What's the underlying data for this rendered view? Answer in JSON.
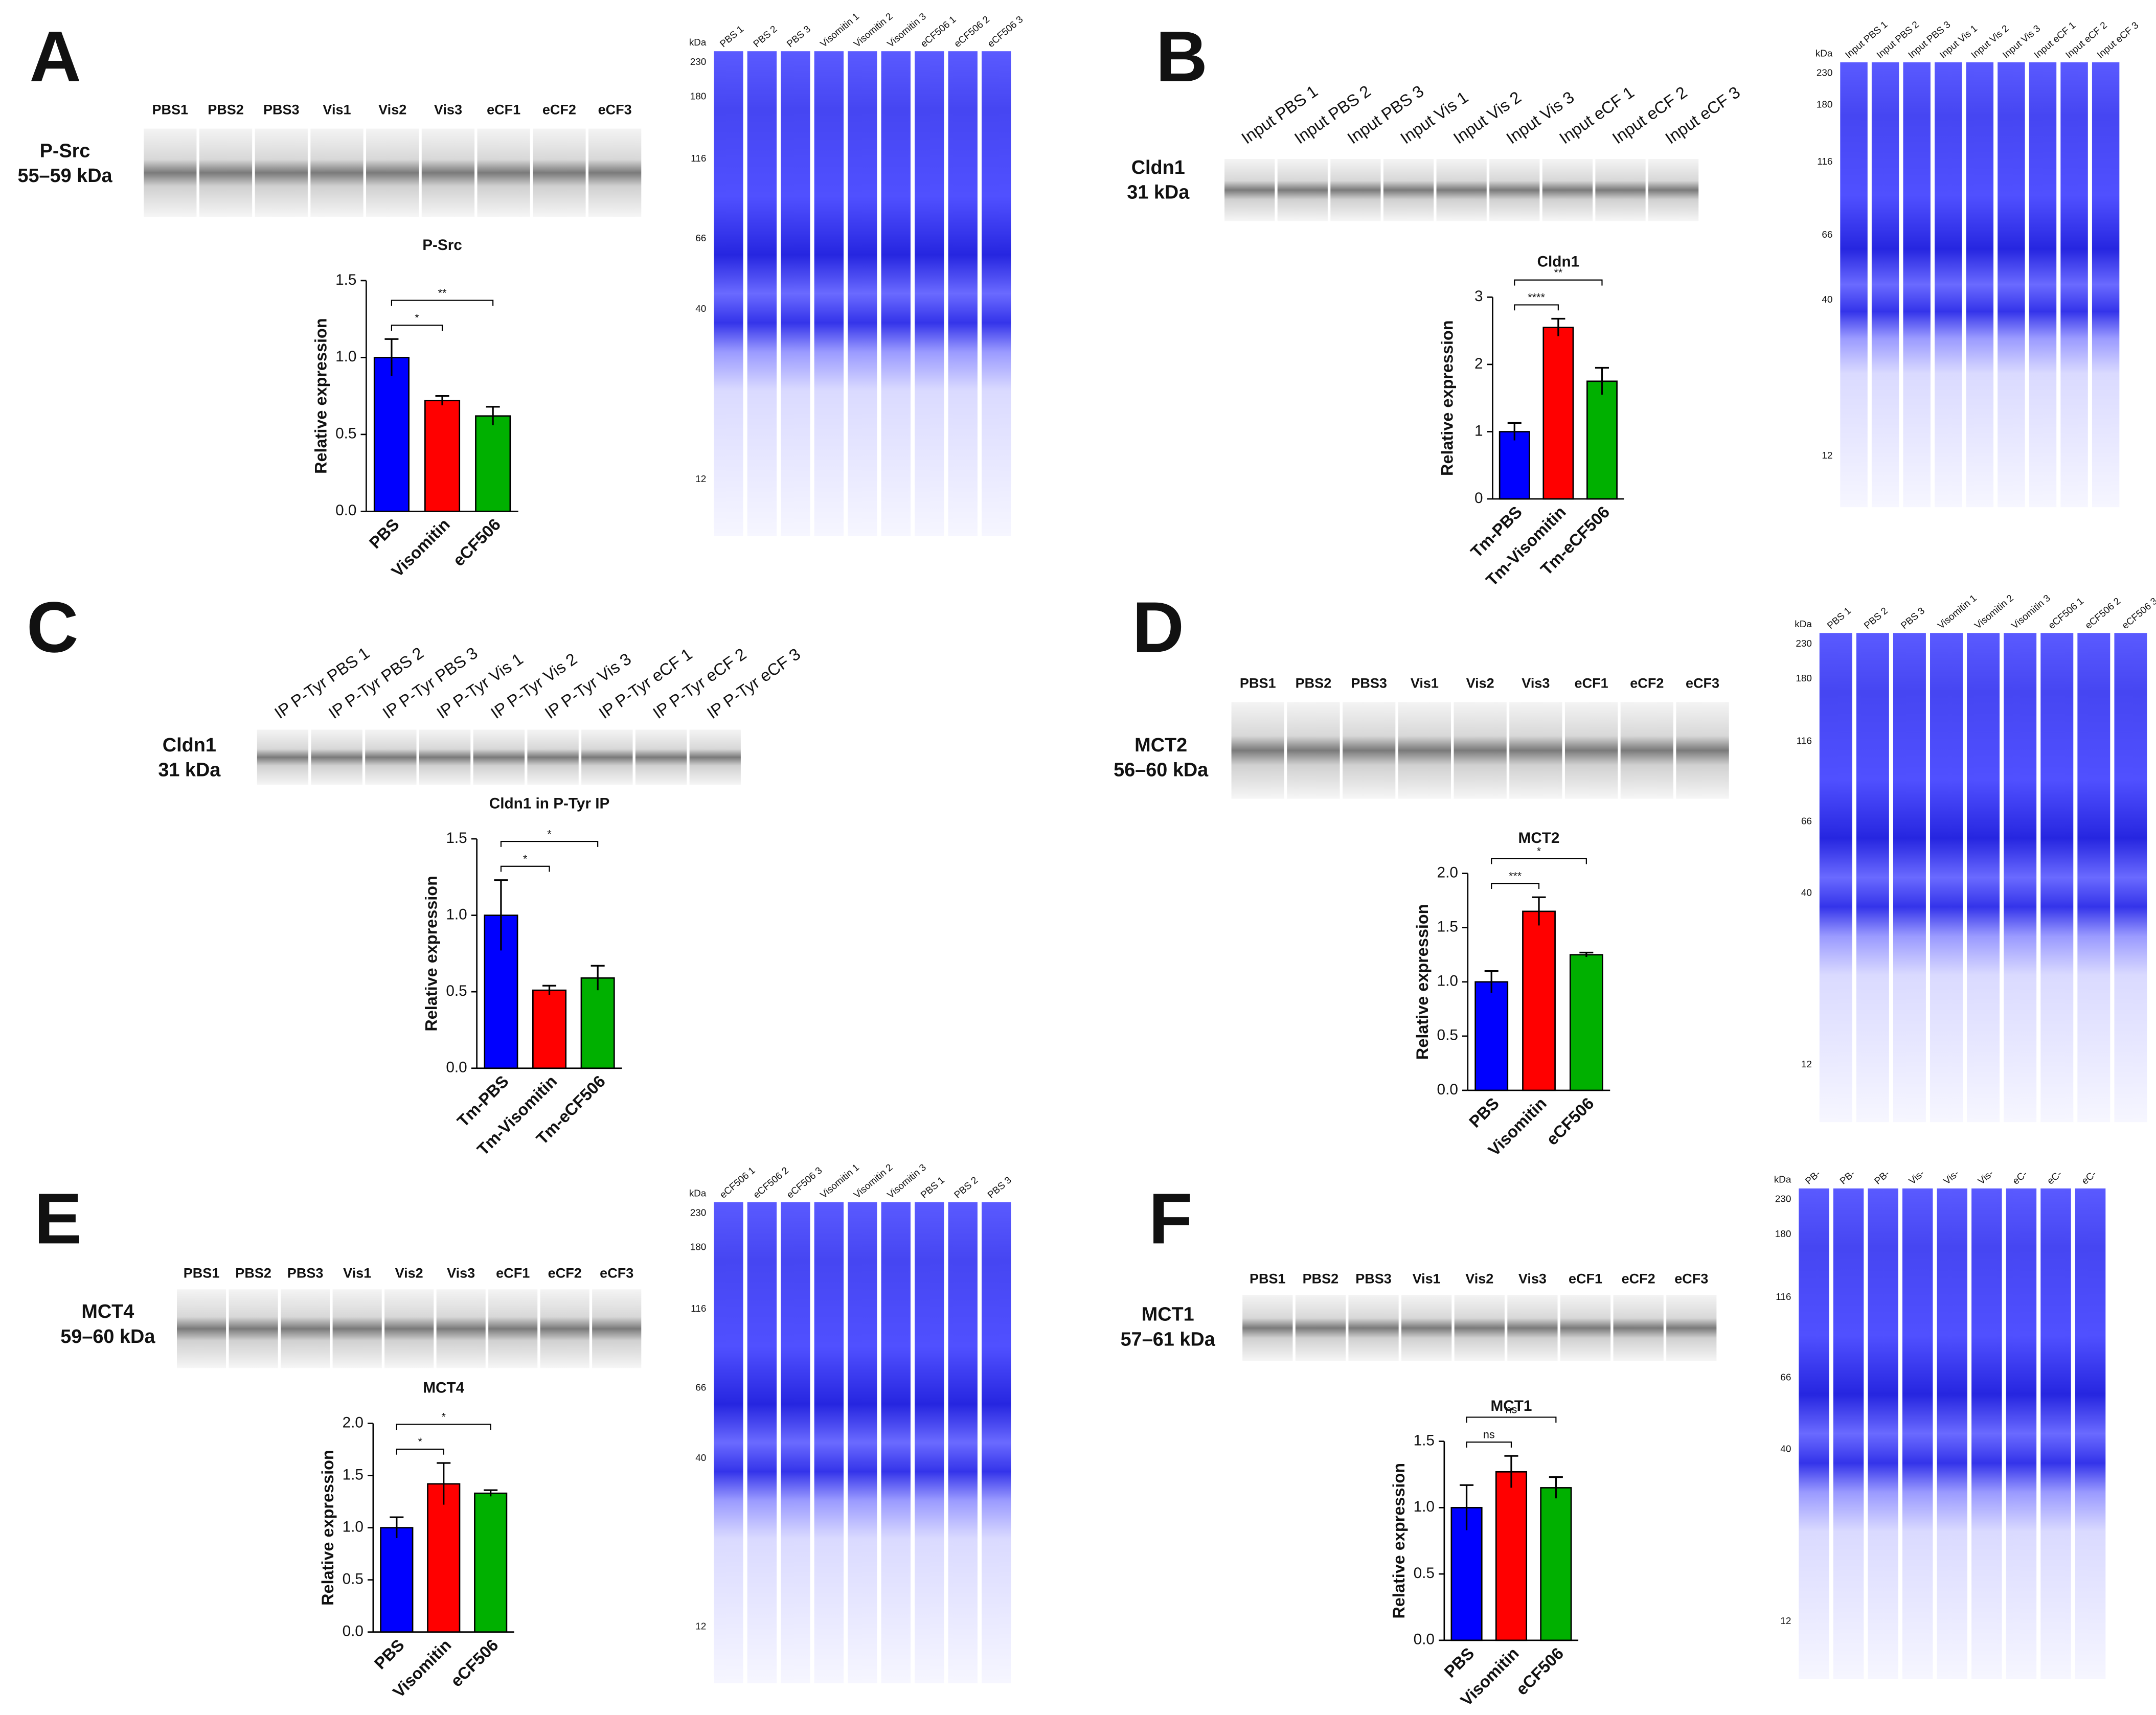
{
  "chart_data": [
    {
      "type": "bar",
      "title": "P-Src",
      "y_label": "Relative expression",
      "categories": [
        "PBS",
        "Visomitin",
        "eCF506"
      ],
      "values": [
        1.0,
        0.72,
        0.62
      ],
      "errors": [
        0.12,
        0.03,
        0.06
      ],
      "colors": [
        "#0000ff",
        "#ff0000",
        "#00b000"
      ],
      "ylim": [
        0,
        1.5
      ],
      "yticks": [
        {
          "value": 0,
          "label": "0.0"
        },
        {
          "value": 0.5,
          "label": "0.5"
        },
        {
          "value": 1,
          "label": "1.0"
        },
        {
          "value": 1.5,
          "label": "1.5"
        }
      ],
      "significance": [
        "*",
        "**"
      ]
    },
    {
      "type": "bar",
      "title": "Cldn1",
      "y_label": "Relative expression",
      "categories": [
        "Tm-PBS",
        "Tm-Visomitin",
        "Tm-eCF506"
      ],
      "values": [
        1.0,
        2.55,
        1.75
      ],
      "errors": [
        0.13,
        0.13,
        0.2
      ],
      "colors": [
        "#0000ff",
        "#ff0000",
        "#00b000"
      ],
      "ylim": [
        0,
        3
      ],
      "yticks": [
        0,
        1,
        2,
        3
      ],
      "significance": [
        "****",
        "**"
      ]
    },
    {
      "type": "bar",
      "title": "Cldn1 in P-Tyr IP",
      "y_label": "Relative expression",
      "categories": [
        "Tm-PBS",
        "Tm-Visomitin",
        "Tm-eCF506"
      ],
      "values": [
        1.0,
        0.51,
        0.59
      ],
      "errors": [
        0.23,
        0.03,
        0.08
      ],
      "colors": [
        "#0000ff",
        "#ff0000",
        "#00b000"
      ],
      "ylim": [
        0,
        1.5
      ],
      "yticks": [
        {
          "value": 0,
          "label": "0.0"
        },
        {
          "value": 0.5,
          "label": "0.5"
        },
        {
          "value": 1,
          "label": "1.0"
        },
        {
          "value": 1.5,
          "label": "1.5"
        }
      ],
      "significance": [
        "*",
        "*"
      ]
    },
    {
      "type": "bar",
      "title": "MCT2",
      "y_label": "Relative expression",
      "categories": [
        "PBS",
        "Visomitin",
        "eCF506"
      ],
      "values": [
        1.0,
        1.65,
        1.25
      ],
      "errors": [
        0.1,
        0.13,
        0.02
      ],
      "colors": [
        "#0000ff",
        "#ff0000",
        "#00b000"
      ],
      "ylim": [
        0,
        2
      ],
      "yticks": [
        {
          "value": 0,
          "label": "0.0"
        },
        {
          "value": 0.5,
          "label": "0.5"
        },
        {
          "value": 1,
          "label": "1.0"
        },
        {
          "value": 1.5,
          "label": "1.5"
        },
        {
          "value": 2,
          "label": "2.0"
        }
      ],
      "significance": [
        "***",
        "*"
      ]
    },
    {
      "type": "bar",
      "title": "MCT4",
      "y_label": "Relative expression",
      "categories": [
        "PBS",
        "Visomitin",
        "eCF506"
      ],
      "values": [
        1.0,
        1.42,
        1.33
      ],
      "errors": [
        0.1,
        0.2,
        0.03
      ],
      "colors": [
        "#0000ff",
        "#ff0000",
        "#00b000"
      ],
      "ylim": [
        0,
        2
      ],
      "yticks": [
        {
          "value": 0,
          "label": "0.0"
        },
        {
          "value": 0.5,
          "label": "0.5"
        },
        {
          "value": 1,
          "label": "1.0"
        },
        {
          "value": 1.5,
          "label": "1.5"
        },
        {
          "value": 2,
          "label": "2.0"
        }
      ],
      "significance": [
        "*",
        "*"
      ]
    },
    {
      "type": "bar",
      "title": "MCT1",
      "y_label": "Relative expression",
      "categories": [
        "PBS",
        "Visomitin",
        "eCF506"
      ],
      "values": [
        1.0,
        1.27,
        1.15
      ],
      "errors": [
        0.17,
        0.12,
        0.08
      ],
      "colors": [
        "#0000ff",
        "#ff0000",
        "#00b000"
      ],
      "ylim": [
        0,
        1.5
      ],
      "yticks": [
        {
          "value": 0,
          "label": "0.0"
        },
        {
          "value": 0.5,
          "label": "0.5"
        },
        {
          "value": 1,
          "label": "1.0"
        },
        {
          "value": 1.5,
          "label": "1.5"
        }
      ],
      "significance": [
        "ns",
        "ns"
      ]
    }
  ],
  "panels": [
    {
      "letter": "A",
      "protein": "P-Src",
      "size": "55–59 kDa",
      "blot_lanes": [
        "PBS1",
        "PBS2",
        "PBS3",
        "Vis1",
        "Vis2",
        "Vis3",
        "eCF1",
        "eCF2",
        "eCF3"
      ],
      "gel_unit": "kDa",
      "gel_markers": [
        230,
        180,
        116,
        66,
        40,
        12
      ],
      "gel_lanes": [
        "PBS 1",
        "PBS 2",
        "PBS 3",
        "Visomitin 1",
        "Visomitin 2",
        "Visomitin 3",
        "eCF506 1",
        "eCF506 2",
        "eCF506 3"
      ]
    },
    {
      "letter": "B",
      "protein": "Cldn1",
      "size": "31 kDa",
      "blot_lanes": [
        "Input PBS 1",
        "Input PBS 2",
        "Input PBS 3",
        "Input Vis 1",
        "Input Vis 2",
        "Input Vis 3",
        "Input eCF 1",
        "Input eCF 2",
        "Input eCF 3"
      ],
      "gel_unit": "kDa",
      "gel_markers": [
        230,
        180,
        116,
        66,
        40,
        12
      ],
      "gel_lanes": [
        "Input PBS 1",
        "Input PBS 2",
        "Input PBS 3",
        "Input Vis 1",
        "Input Vis 2",
        "Input Vis 3",
        "Input eCF 1",
        "Input eCF 2",
        "Input eCF 3"
      ]
    },
    {
      "letter": "C",
      "protein": "Cldn1",
      "size": "31 kDa",
      "blot_lanes": [
        "IP P-Tyr PBS 1",
        "IP P-Tyr PBS 2",
        "IP P-Tyr PBS 3",
        "IP P-Tyr Vis 1",
        "IP P-Tyr Vis 2",
        "IP P-Tyr Vis 3",
        "IP P-Tyr eCF 1",
        "IP P-Tyr eCF 2",
        "IP P-Tyr eCF 3"
      ]
    },
    {
      "letter": "D",
      "protein": "MCT2",
      "size": "56–60 kDa",
      "blot_lanes": [
        "PBS1",
        "PBS2",
        "PBS3",
        "Vis1",
        "Vis2",
        "Vis3",
        "eCF1",
        "eCF2",
        "eCF3"
      ],
      "gel_unit": "kDa",
      "gel_markers": [
        230,
        180,
        116,
        66,
        40,
        12
      ],
      "gel_lanes": [
        "PBS 1",
        "PBS 2",
        "PBS 3",
        "Visomitin 1",
        "Visomitin 2",
        "Visomitin 3",
        "eCF506 1",
        "eCF506 2",
        "eCF506 3"
      ]
    },
    {
      "letter": "E",
      "protein": "MCT4",
      "size": "59–60 kDa",
      "blot_lanes": [
        "PBS1",
        "PBS2",
        "PBS3",
        "Vis1",
        "Vis2",
        "Vis3",
        "eCF1",
        "eCF2",
        "eCF3"
      ],
      "gel_unit": "kDa",
      "gel_markers": [
        230,
        180,
        116,
        66,
        40,
        12
      ],
      "gel_lanes": [
        "eCF506 1",
        "eCF506 2",
        "eCF506 3",
        "Visomitin 1",
        "Visomitin 2",
        "Visomitin 3",
        "PBS 1",
        "PBS 2",
        "PBS 3"
      ]
    },
    {
      "letter": "F",
      "protein": "MCT1",
      "size": "57–61 kDa",
      "blot_lanes": [
        "PBS1",
        "PBS2",
        "PBS3",
        "Vis1",
        "Vis2",
        "Vis3",
        "eCF1",
        "eCF2",
        "eCF3"
      ],
      "gel_unit": "kDa",
      "gel_markers": [
        230,
        180,
        116,
        66,
        40,
        12
      ],
      "gel_lanes": [
        "PB-",
        "PB-",
        "PB-",
        "Vis-",
        "Vis-",
        "Vis-",
        "eC-",
        "eC-",
        "eC-"
      ]
    }
  ]
}
